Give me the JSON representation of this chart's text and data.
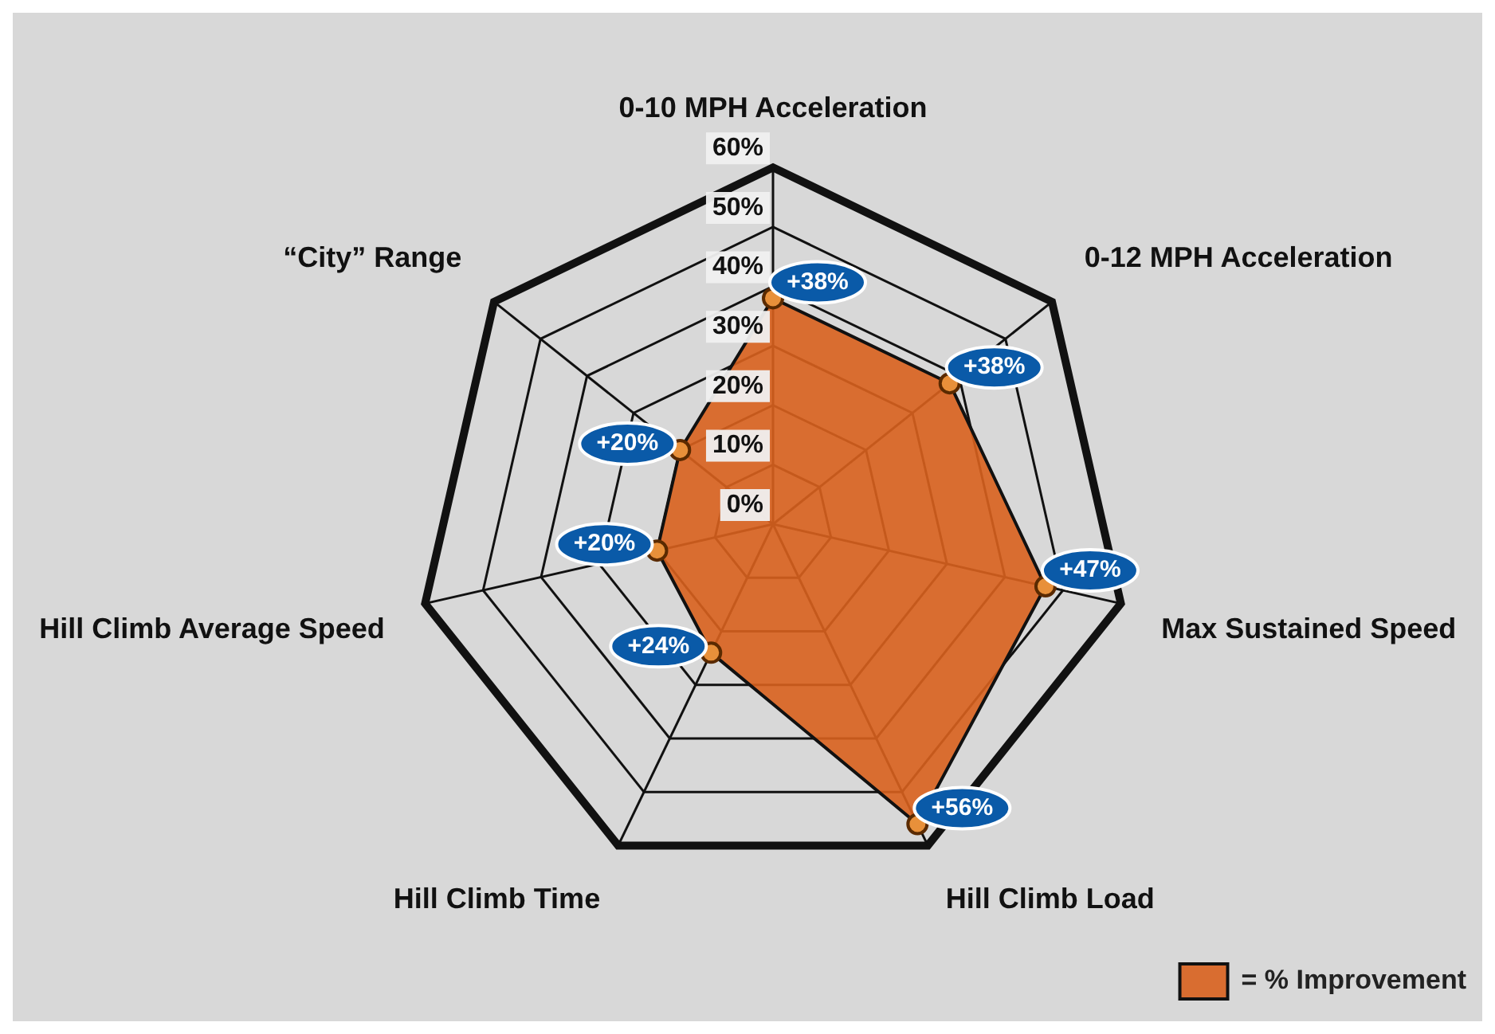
{
  "chart_data": {
    "type": "radar",
    "categories": [
      "0-10 MPH Acceleration",
      "0-12 MPH Acceleration",
      "Max Sustained Speed",
      "Hill Climb Load",
      "Hill Climb Time",
      "Hill Climb Average Speed",
      "“City” Range"
    ],
    "series": [
      {
        "name": "= % Improvement",
        "color": "#d9621e",
        "values": [
          38,
          38,
          47,
          56,
          24,
          20,
          20
        ],
        "value_labels": [
          "+38%",
          "+38%",
          "+47%",
          "+56%",
          "+24%",
          "+20%",
          "+20%"
        ]
      }
    ],
    "ylim": [
      0,
      60
    ],
    "yticks": [
      {
        "value": 0,
        "label": "0%"
      },
      {
        "value": 10,
        "label": "10%"
      },
      {
        "value": 20,
        "label": "20%"
      },
      {
        "value": 30,
        "label": "30%"
      },
      {
        "value": 40,
        "label": "40%"
      },
      {
        "value": 50,
        "label": "50%"
      },
      {
        "value": 60,
        "label": "60%"
      }
    ],
    "grid": true,
    "legend": "bottom right",
    "marker": "circle"
  }
}
